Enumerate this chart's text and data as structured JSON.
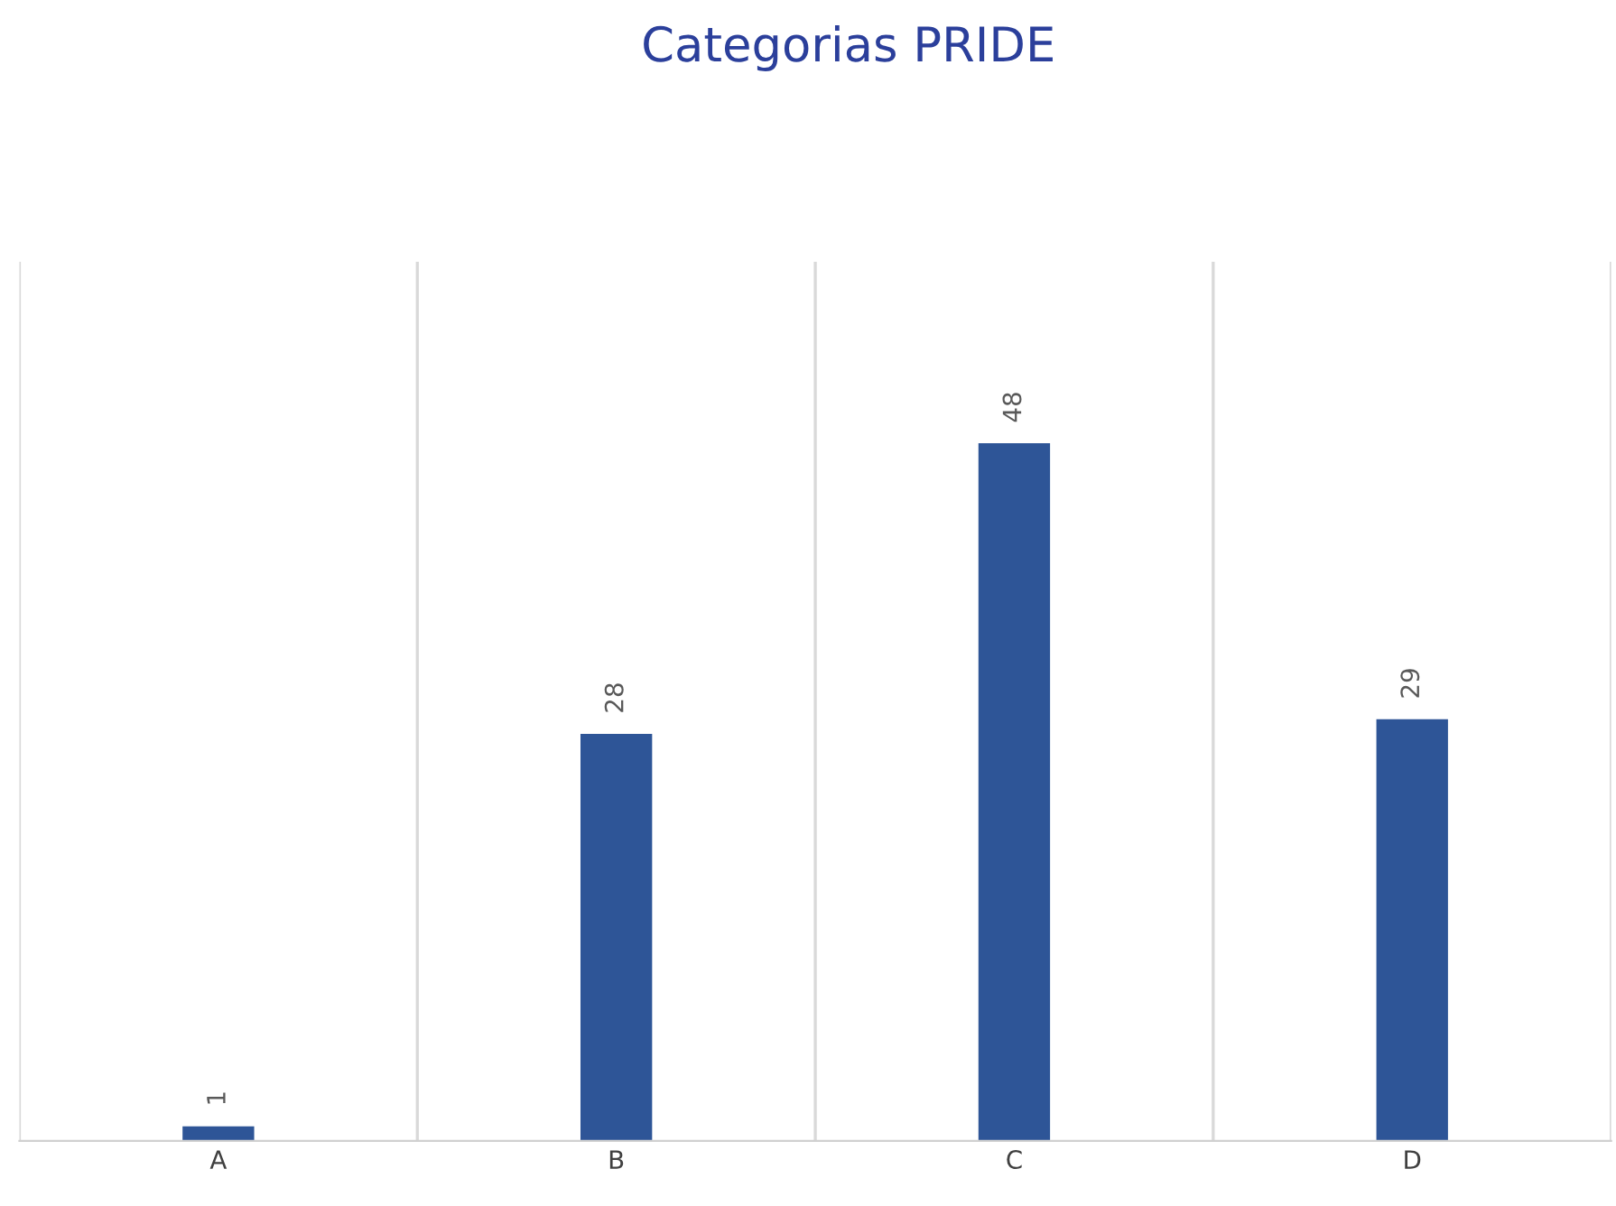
{
  "chart_data": {
    "type": "bar",
    "title": "Categorias PRIDE",
    "categories": [
      "A",
      "B",
      "C",
      "D"
    ],
    "values": [
      1,
      28,
      48,
      29
    ],
    "color": "#2e5597",
    "data_labels": true,
    "grid": "x",
    "legend": false
  }
}
